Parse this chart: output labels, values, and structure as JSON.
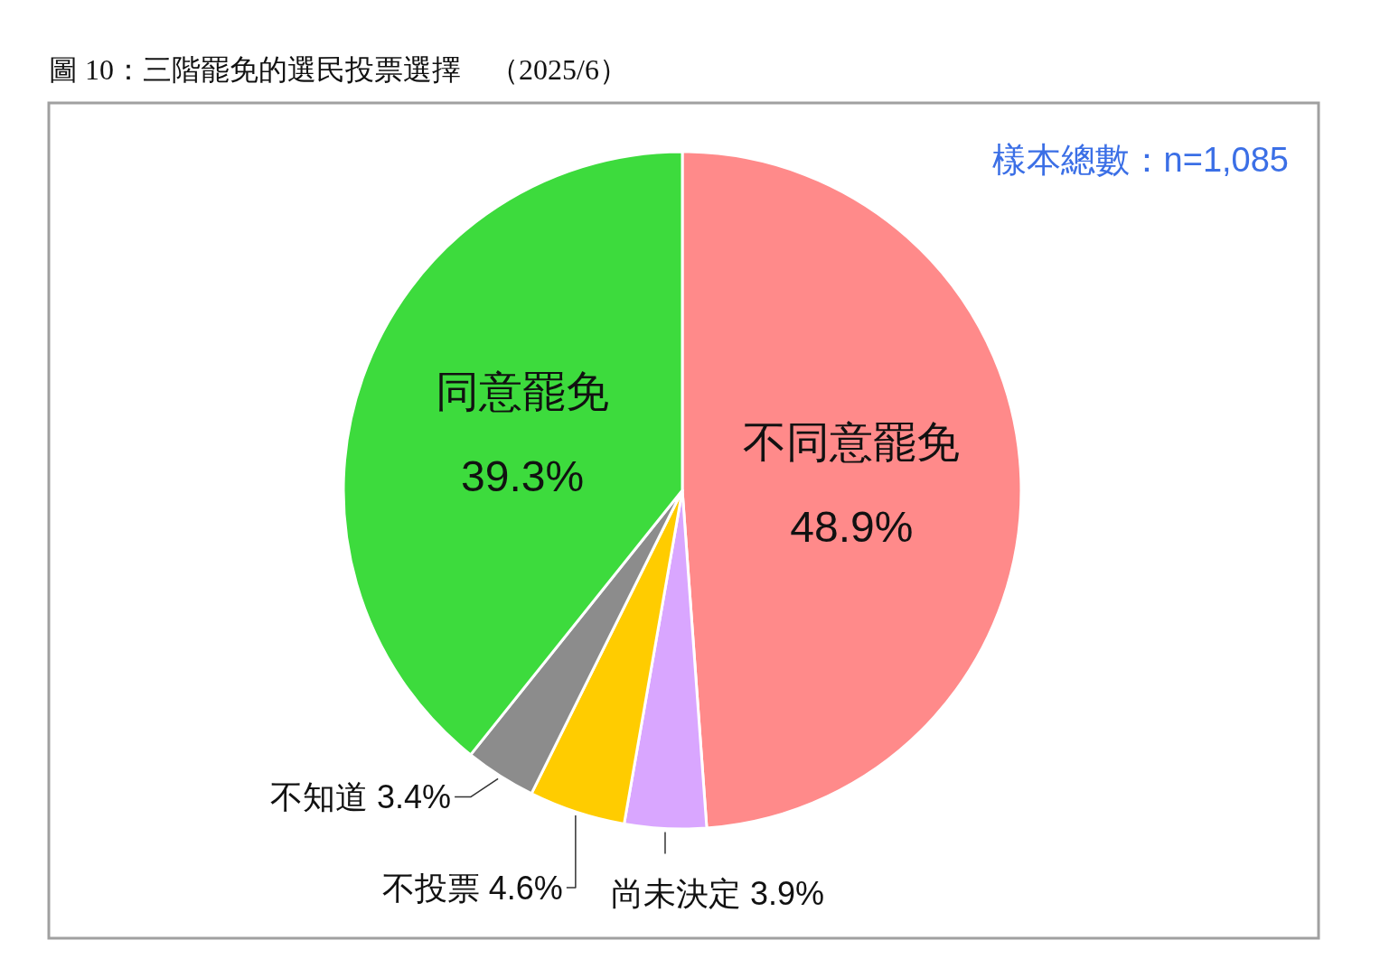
{
  "chart_data": {
    "type": "pie",
    "title": "圖 10：三階罷免的選民投票選擇　（2025/6）",
    "categories": [
      "不同意罷免",
      "尚未決定",
      "不投票",
      "不知道",
      "同意罷免"
    ],
    "values": [
      48.9,
      3.9,
      4.6,
      3.4,
      39.3
    ],
    "value_labels": [
      "48.9%",
      "3.9%",
      "4.6%",
      "3.4%",
      "39.3%"
    ],
    "colors": [
      "#ff8a8a",
      "#d9a6ff",
      "#ffcc00",
      "#8c8c8c",
      "#3ddb3d"
    ],
    "annotations": [
      "樣本總數：n=1,085"
    ]
  }
}
